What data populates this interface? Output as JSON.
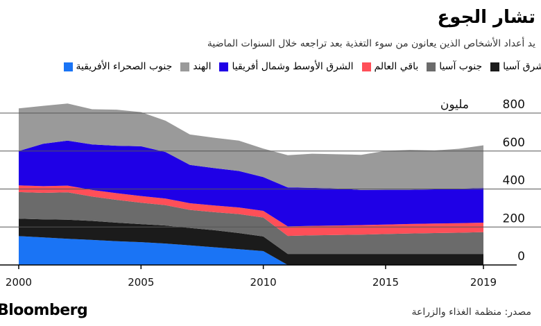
{
  "header": {
    "title": "تشار الجوع",
    "subtitle": "يد أعداد الأشخاص الذين يعانون من سوء التغذية بعد تراجعه خلال السنوات الماضية"
  },
  "legend": [
    {
      "label": "شرق آسيا",
      "color": "#1b1b1b"
    },
    {
      "label": "جنوب آسيا",
      "color": "#6b6b6b"
    },
    {
      "label": "باقي العالم",
      "color": "#ff4f58"
    },
    {
      "label": "الشرق الأوسط وشمال أفريقيا",
      "color": "#1f00e6"
    },
    {
      "label": "الهند",
      "color": "#9a9a9a"
    },
    {
      "label": "جنوب الصحراء الأفريقية",
      "color": "#1a74f5"
    }
  ],
  "footer": {
    "source": "مصدر: منظمة الغذاء والزراعة",
    "brand": "Bloomberg"
  },
  "chart_data": {
    "type": "area",
    "stacked": true,
    "x": [
      2000,
      2001,
      2002,
      2003,
      2004,
      2005,
      2006,
      2007,
      2008,
      2009,
      2010,
      2011,
      2012,
      2013,
      2014,
      2015,
      2016,
      2017,
      2018,
      2019
    ],
    "xticks": [
      2000,
      2005,
      2010,
      2015,
      2019
    ],
    "yticks": [
      0,
      200,
      400,
      600,
      800
    ],
    "ytick_labels": [
      "0",
      "200",
      "400",
      "600",
      "800"
    ],
    "y_unit_label": "مليون",
    "ylim": [
      0,
      800
    ],
    "series": [
      {
        "name": "جنوب الصحراء الأفريقية",
        "color": "#1a74f5",
        "values": [
          152,
          145,
          138,
          132,
          125,
          120,
          113,
          103,
          93,
          83,
          73,
          0,
          0,
          0,
          0,
          0,
          0,
          0,
          0,
          0
        ]
      },
      {
        "name": "شرق آسيا",
        "color": "#1b1b1b",
        "values": [
          92,
          95,
          100,
          100,
          98,
          95,
          95,
          92,
          90,
          85,
          77,
          58,
          58,
          58,
          58,
          58,
          58,
          58,
          58,
          58
        ]
      },
      {
        "name": "جنوب آسيا",
        "color": "#6b6b6b",
        "values": [
          140,
          140,
          145,
          128,
          120,
          113,
          107,
          95,
          95,
          100,
          100,
          95,
          98,
          100,
          102,
          105,
          108,
          110,
          112,
          115
        ]
      },
      {
        "name": "باقي العالم",
        "color": "#ff4f58",
        "values": [
          35,
          35,
          35,
          35,
          35,
          35,
          35,
          35,
          35,
          35,
          35,
          50,
          50,
          50,
          50,
          50,
          50,
          50,
          50,
          50
        ]
      },
      {
        "name": "الشرق الأوسط وشمال أفريقيا",
        "color": "#1f00e6",
        "values": [
          181,
          223,
          237,
          240,
          250,
          262,
          245,
          202,
          197,
          192,
          178,
          205,
          200,
          195,
          185,
          183,
          180,
          180,
          182,
          182
        ]
      },
      {
        "name": "الهند",
        "color": "#9a9a9a",
        "values": [
          225,
          200,
          195,
          185,
          190,
          180,
          165,
          160,
          160,
          160,
          150,
          170,
          180,
          180,
          185,
          205,
          210,
          205,
          210,
          225
        ]
      }
    ]
  }
}
